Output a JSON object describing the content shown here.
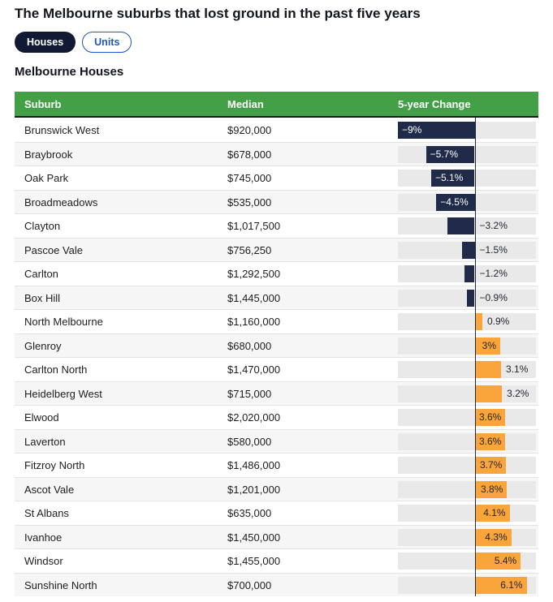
{
  "page": {
    "title": "The Melbourne suburbs that lost ground in the past five years"
  },
  "toggle": {
    "houses_label": "Houses",
    "units_label": "Units",
    "selected": "Houses"
  },
  "section": {
    "heading": "Melbourne Houses"
  },
  "table": {
    "columns": [
      "Suburb",
      "Median",
      "5-year Change"
    ]
  },
  "colors": {
    "header_green": "#43a047",
    "bar_negative": "#1f2b49",
    "bar_positive": "#faa43c",
    "track_gray": "#e9e9e9",
    "toggle_navy": "#121a33",
    "toggle_blue": "#1d56c6",
    "label_on_negative": "#ffffff",
    "label_dark": "#23262d"
  },
  "chart_data": {
    "type": "bar",
    "orientation": "horizontal",
    "title": "Melbourne Houses",
    "xlabel": "5-year Change (%)",
    "ylabel": "Suburb",
    "axis_range": [
      -9,
      7.3
    ],
    "grid": false,
    "legend": "none",
    "categories": [
      "Brunswick West",
      "Braybrook",
      "Oak Park",
      "Broadmeadows",
      "Clayton",
      "Pascoe Vale",
      "Carlton",
      "Box Hill",
      "North Melbourne",
      "Glenroy",
      "Carlton North",
      "Heidelberg West",
      "Elwood",
      "Laverton",
      "Fitzroy North",
      "Ascot Vale",
      "St Albans",
      "Ivanhoe",
      "Windsor",
      "Sunshine North"
    ],
    "series": [
      {
        "name": "Median ($)",
        "values": [
          920000,
          678000,
          745000,
          535000,
          1017500,
          756250,
          1292500,
          1445000,
          1160000,
          680000,
          1470000,
          715000,
          2020000,
          580000,
          1486000,
          1201000,
          635000,
          1450000,
          1455000,
          700000
        ]
      },
      {
        "name": "5-year Change (%)",
        "values": [
          -9,
          -5.7,
          -5.1,
          -4.5,
          -3.2,
          -1.5,
          -1.2,
          -0.9,
          0.9,
          3,
          3.1,
          3.2,
          3.6,
          3.6,
          3.7,
          3.8,
          4.1,
          4.3,
          5.4,
          6.1
        ]
      }
    ],
    "rows": [
      {
        "suburb": "Brunswick West",
        "median": "$920,000",
        "change_pct": -9,
        "change_label": "−9%"
      },
      {
        "suburb": "Braybrook",
        "median": "$678,000",
        "change_pct": -5.7,
        "change_label": "−5.7%"
      },
      {
        "suburb": "Oak Park",
        "median": "$745,000",
        "change_pct": -5.1,
        "change_label": "−5.1%"
      },
      {
        "suburb": "Broadmeadows",
        "median": "$535,000",
        "change_pct": -4.5,
        "change_label": "−4.5%"
      },
      {
        "suburb": "Clayton",
        "median": "$1,017,500",
        "change_pct": -3.2,
        "change_label": "−3.2%"
      },
      {
        "suburb": "Pascoe Vale",
        "median": "$756,250",
        "change_pct": -1.5,
        "change_label": "−1.5%"
      },
      {
        "suburb": "Carlton",
        "median": "$1,292,500",
        "change_pct": -1.2,
        "change_label": "−1.2%"
      },
      {
        "suburb": "Box Hill",
        "median": "$1,445,000",
        "change_pct": -0.9,
        "change_label": "−0.9%"
      },
      {
        "suburb": "North Melbourne",
        "median": "$1,160,000",
        "change_pct": 0.9,
        "change_label": "0.9%"
      },
      {
        "suburb": "Glenroy",
        "median": "$680,000",
        "change_pct": 3,
        "change_label": "3%"
      },
      {
        "suburb": "Carlton North",
        "median": "$1,470,000",
        "change_pct": 3.1,
        "change_label": "3.1%"
      },
      {
        "suburb": "Heidelberg West",
        "median": "$715,000",
        "change_pct": 3.2,
        "change_label": "3.2%"
      },
      {
        "suburb": "Elwood",
        "median": "$2,020,000",
        "change_pct": 3.6,
        "change_label": "3.6%"
      },
      {
        "suburb": "Laverton",
        "median": "$580,000",
        "change_pct": 3.6,
        "change_label": "3.6%"
      },
      {
        "suburb": "Fitzroy North",
        "median": "$1,486,000",
        "change_pct": 3.7,
        "change_label": "3.7%"
      },
      {
        "suburb": "Ascot Vale",
        "median": "$1,201,000",
        "change_pct": 3.8,
        "change_label": "3.8%"
      },
      {
        "suburb": "St Albans",
        "median": "$635,000",
        "change_pct": 4.1,
        "change_label": "4.1%"
      },
      {
        "suburb": "Ivanhoe",
        "median": "$1,450,000",
        "change_pct": 4.3,
        "change_label": "4.3%"
      },
      {
        "suburb": "Windsor",
        "median": "$1,455,000",
        "change_pct": 5.4,
        "change_label": "5.4%"
      },
      {
        "suburb": "Sunshine North",
        "median": "$700,000",
        "change_pct": 6.1,
        "change_label": "6.1%"
      }
    ]
  }
}
